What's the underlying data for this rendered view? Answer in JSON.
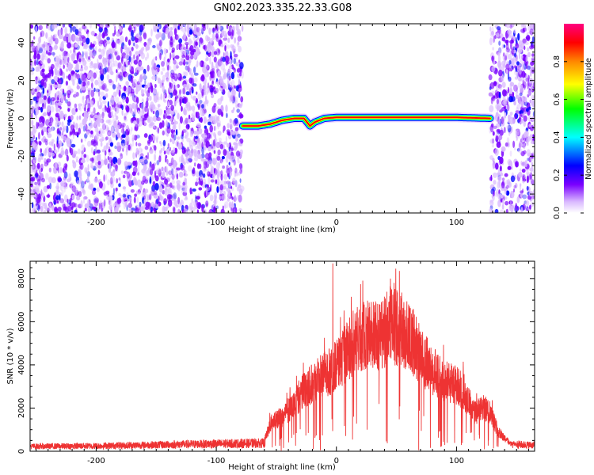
{
  "title": "GN02.2023.335.22.33.G08",
  "colors": {
    "snr_line": "#ee3333",
    "axis": "#000000",
    "colormap": [
      "#ffffff",
      "#d9b8ff",
      "#7a00ff",
      "#0000ff",
      "#00ffff",
      "#00ff00",
      "#ffff00",
      "#ff8800",
      "#ff0000",
      "#ff0080"
    ]
  },
  "chart_data": [
    {
      "type": "heatmap",
      "name": "spectrogram",
      "xlabel": "Height of straight line (km)",
      "ylabel": "Frequency (Hz)",
      "xlim": [
        -255,
        165
      ],
      "ylim": [
        -50,
        50
      ],
      "xticks": [
        -200,
        -100,
        0,
        100
      ],
      "yticks": [
        -40,
        -20,
        0,
        20,
        40
      ],
      "xtick_labels": [
        "-200",
        "-100",
        "0",
        "100"
      ],
      "ytick_labels": [
        "-40",
        "-20",
        "0",
        "20",
        "40"
      ],
      "noise_regions": [
        [
          -255,
          -78
        ],
        [
          128,
          165
        ]
      ],
      "signal_track": [
        {
          "x": -78,
          "y": -4
        },
        {
          "x": -65,
          "y": -4
        },
        {
          "x": -55,
          "y": -3
        },
        {
          "x": -45,
          "y": -1
        },
        {
          "x": -35,
          "y": 0
        },
        {
          "x": -27,
          "y": 0
        },
        {
          "x": -22,
          "y": -4
        },
        {
          "x": -18,
          "y": -2
        },
        {
          "x": -10,
          "y": 0
        },
        {
          "x": 0,
          "y": 0.5
        },
        {
          "x": 50,
          "y": 0.5
        },
        {
          "x": 100,
          "y": 0.5
        },
        {
          "x": 128,
          "y": 0
        }
      ],
      "colorbar": {
        "label": "Normalized spectral amplitude",
        "range": [
          0,
          1
        ],
        "ticks": [
          0.0,
          0.2,
          0.4,
          0.6,
          0.8
        ],
        "tick_labels": [
          "0.0",
          "0.2",
          "0.4",
          "0.6",
          "0.8"
        ]
      }
    },
    {
      "type": "line",
      "name": "snr",
      "xlabel": "Height of straight line (km)",
      "ylabel": "SNR (10 * v/v)",
      "xlim": [
        -255,
        165
      ],
      "ylim": [
        0,
        8800
      ],
      "xticks": [
        -200,
        -100,
        0,
        100
      ],
      "yticks": [
        0,
        2000,
        4000,
        6000,
        8000
      ],
      "xtick_labels": [
        "-200",
        "-100",
        "0",
        "100"
      ],
      "ytick_labels": [
        "0",
        "2000",
        "4000",
        "6000",
        "8000"
      ],
      "envelope": {
        "x": [
          -255,
          -200,
          -100,
          -60,
          -55,
          -45,
          -35,
          -25,
          -15,
          -5,
          5,
          15,
          25,
          35,
          45,
          55,
          65,
          75,
          85,
          95,
          105,
          115,
          122,
          128,
          135,
          145,
          155,
          165
        ],
        "y": [
          300,
          330,
          460,
          500,
          1600,
          2000,
          2800,
          3700,
          4300,
          4600,
          5400,
          6300,
          6800,
          6600,
          7300,
          7000,
          6200,
          5100,
          4300,
          4000,
          3600,
          2200,
          2500,
          2300,
          1100,
          450,
          400,
          380
        ]
      },
      "peaks": [
        {
          "x": -3,
          "y": 8700
        },
        {
          "x": 22,
          "y": 7900
        },
        {
          "x": 45,
          "y": 8000
        },
        {
          "x": 48,
          "y": 7800
        }
      ]
    }
  ]
}
